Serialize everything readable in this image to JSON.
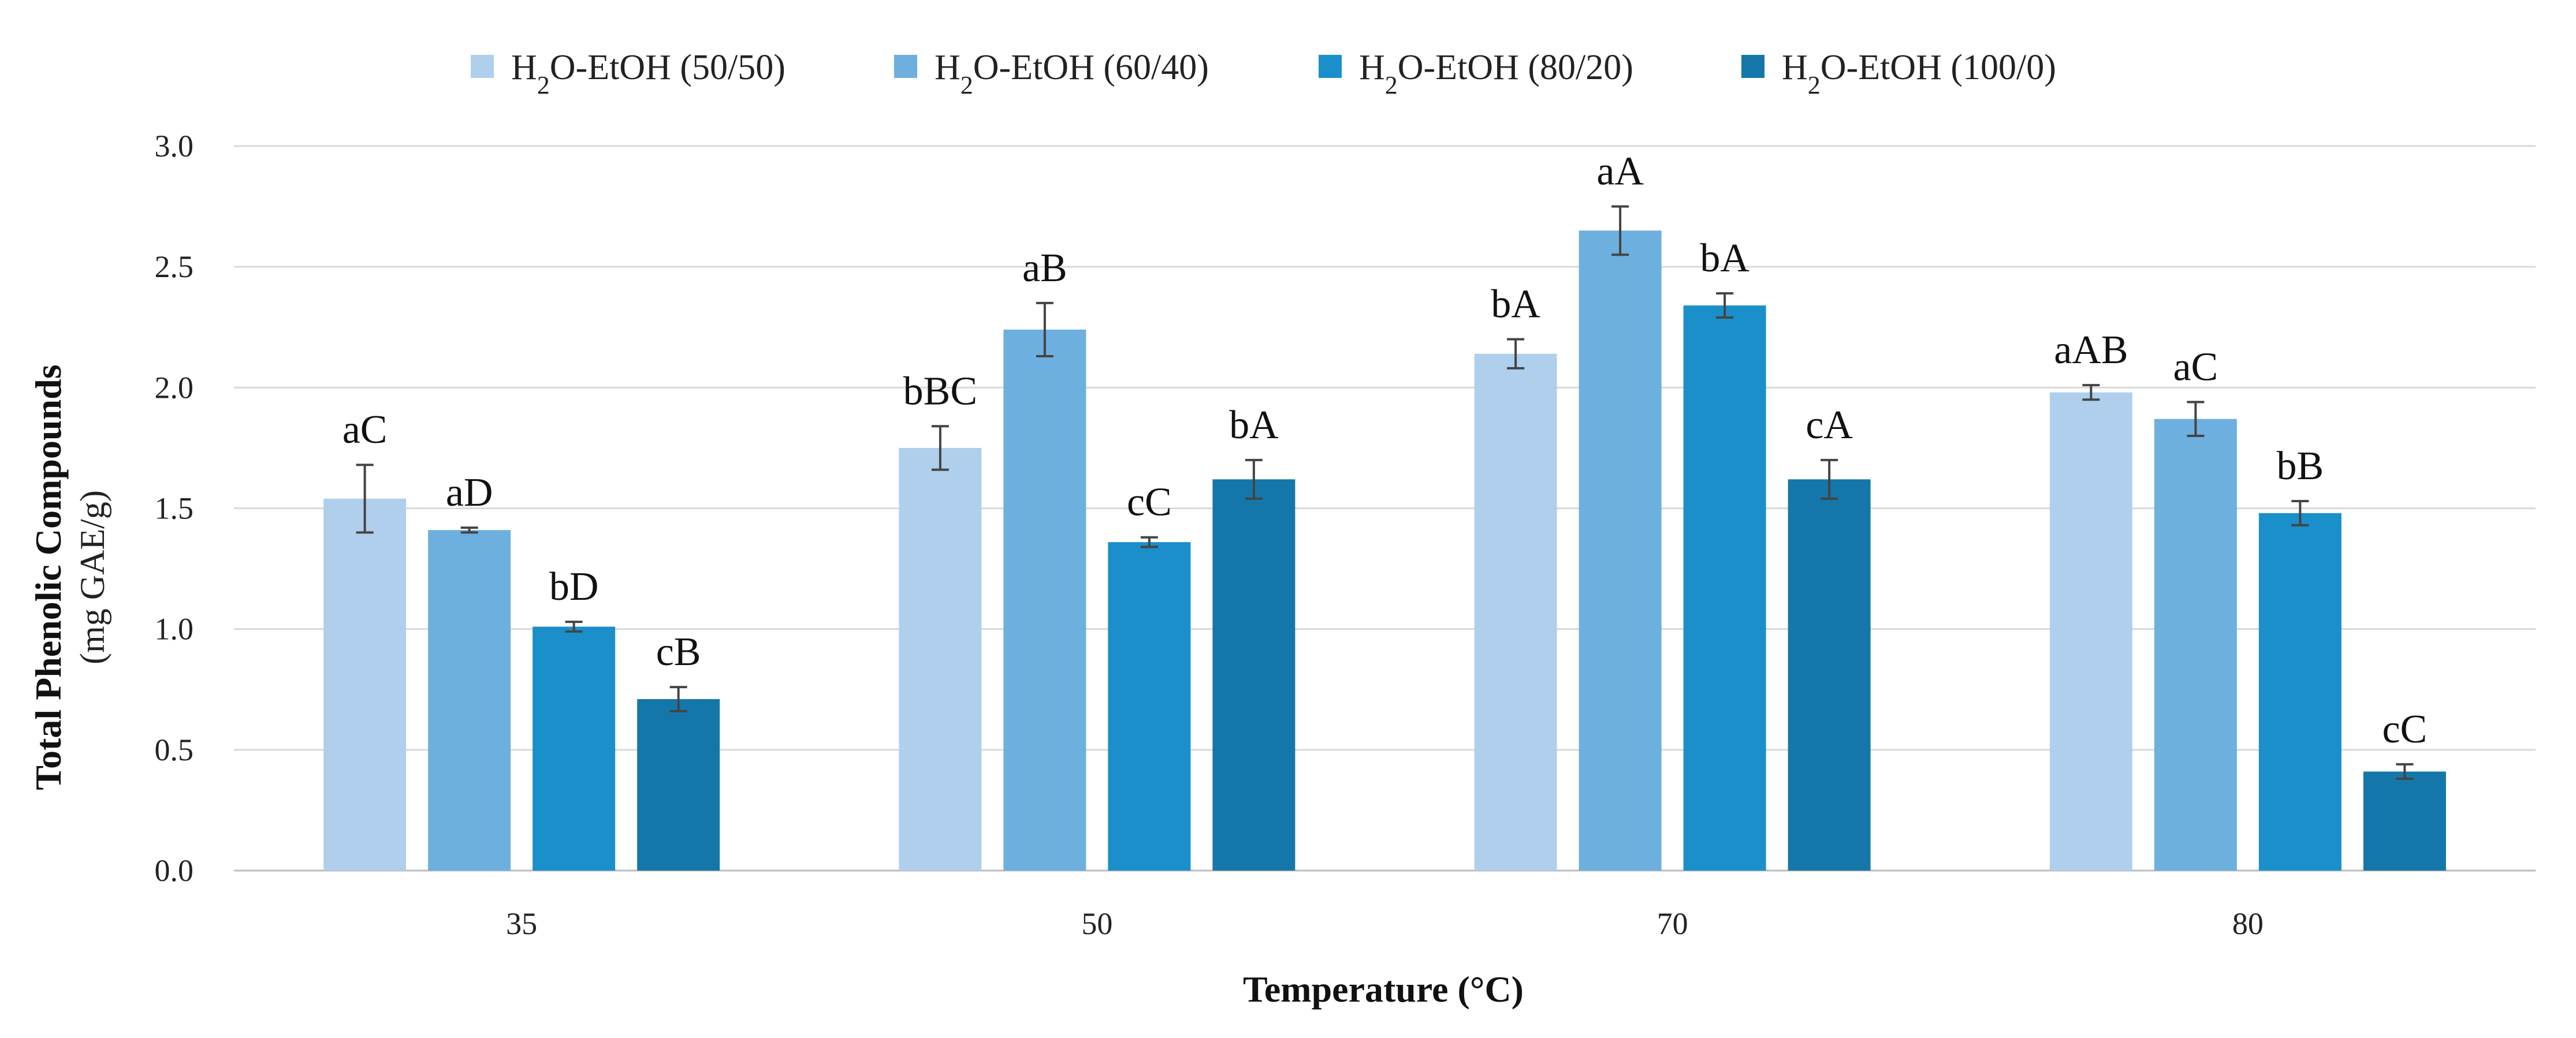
{
  "chart_data": {
    "type": "bar",
    "title": "",
    "xlabel": "Temperature (°C)",
    "ylabel_line1": "Total Phenolic Compounds",
    "ylabel_line2": "(mg GAE/g)",
    "ylim": [
      0,
      3.0
    ],
    "yticks": [
      "0.0",
      "0.5",
      "1.0",
      "1.5",
      "2.0",
      "2.5",
      "3.0"
    ],
    "grid": true,
    "legend_position": "top",
    "categories": [
      "35",
      "50",
      "70",
      "80"
    ],
    "series": [
      {
        "name_prefix": "H",
        "name_sub": "2",
        "name_suffix": "O-EtOH (50/50)",
        "color": "#afcfec",
        "values": [
          1.54,
          1.75,
          2.14,
          1.98
        ],
        "errors": [
          0.14,
          0.09,
          0.06,
          0.03
        ],
        "labels": [
          "aC",
          "bBC",
          "bA",
          "aAB"
        ]
      },
      {
        "name_prefix": "H",
        "name_sub": "2",
        "name_suffix": "O-EtOH (60/40)",
        "color": "#6dafdf",
        "values": [
          1.41,
          2.24,
          2.65,
          1.87
        ],
        "errors": [
          0.01,
          0.11,
          0.1,
          0.07
        ],
        "labels": [
          "aD",
          "aB",
          "aA",
          "aC"
        ]
      },
      {
        "name_prefix": "H",
        "name_sub": "2",
        "name_suffix": "O-EtOH (80/20)",
        "color": "#1a8fca",
        "values": [
          1.01,
          1.36,
          2.34,
          1.48
        ],
        "errors": [
          0.02,
          0.02,
          0.05,
          0.05
        ],
        "labels": [
          "bD",
          "cC",
          "bA",
          "bB"
        ]
      },
      {
        "name_prefix": "H",
        "name_sub": "2",
        "name_suffix": "O-EtOH (100/0)",
        "color": "#1577a9",
        "values": [
          0.71,
          1.62,
          1.62,
          0.41
        ],
        "errors": [
          0.05,
          0.08,
          0.08,
          0.03
        ],
        "labels": [
          "cB",
          "bA",
          "cA",
          "cC"
        ]
      }
    ]
  }
}
